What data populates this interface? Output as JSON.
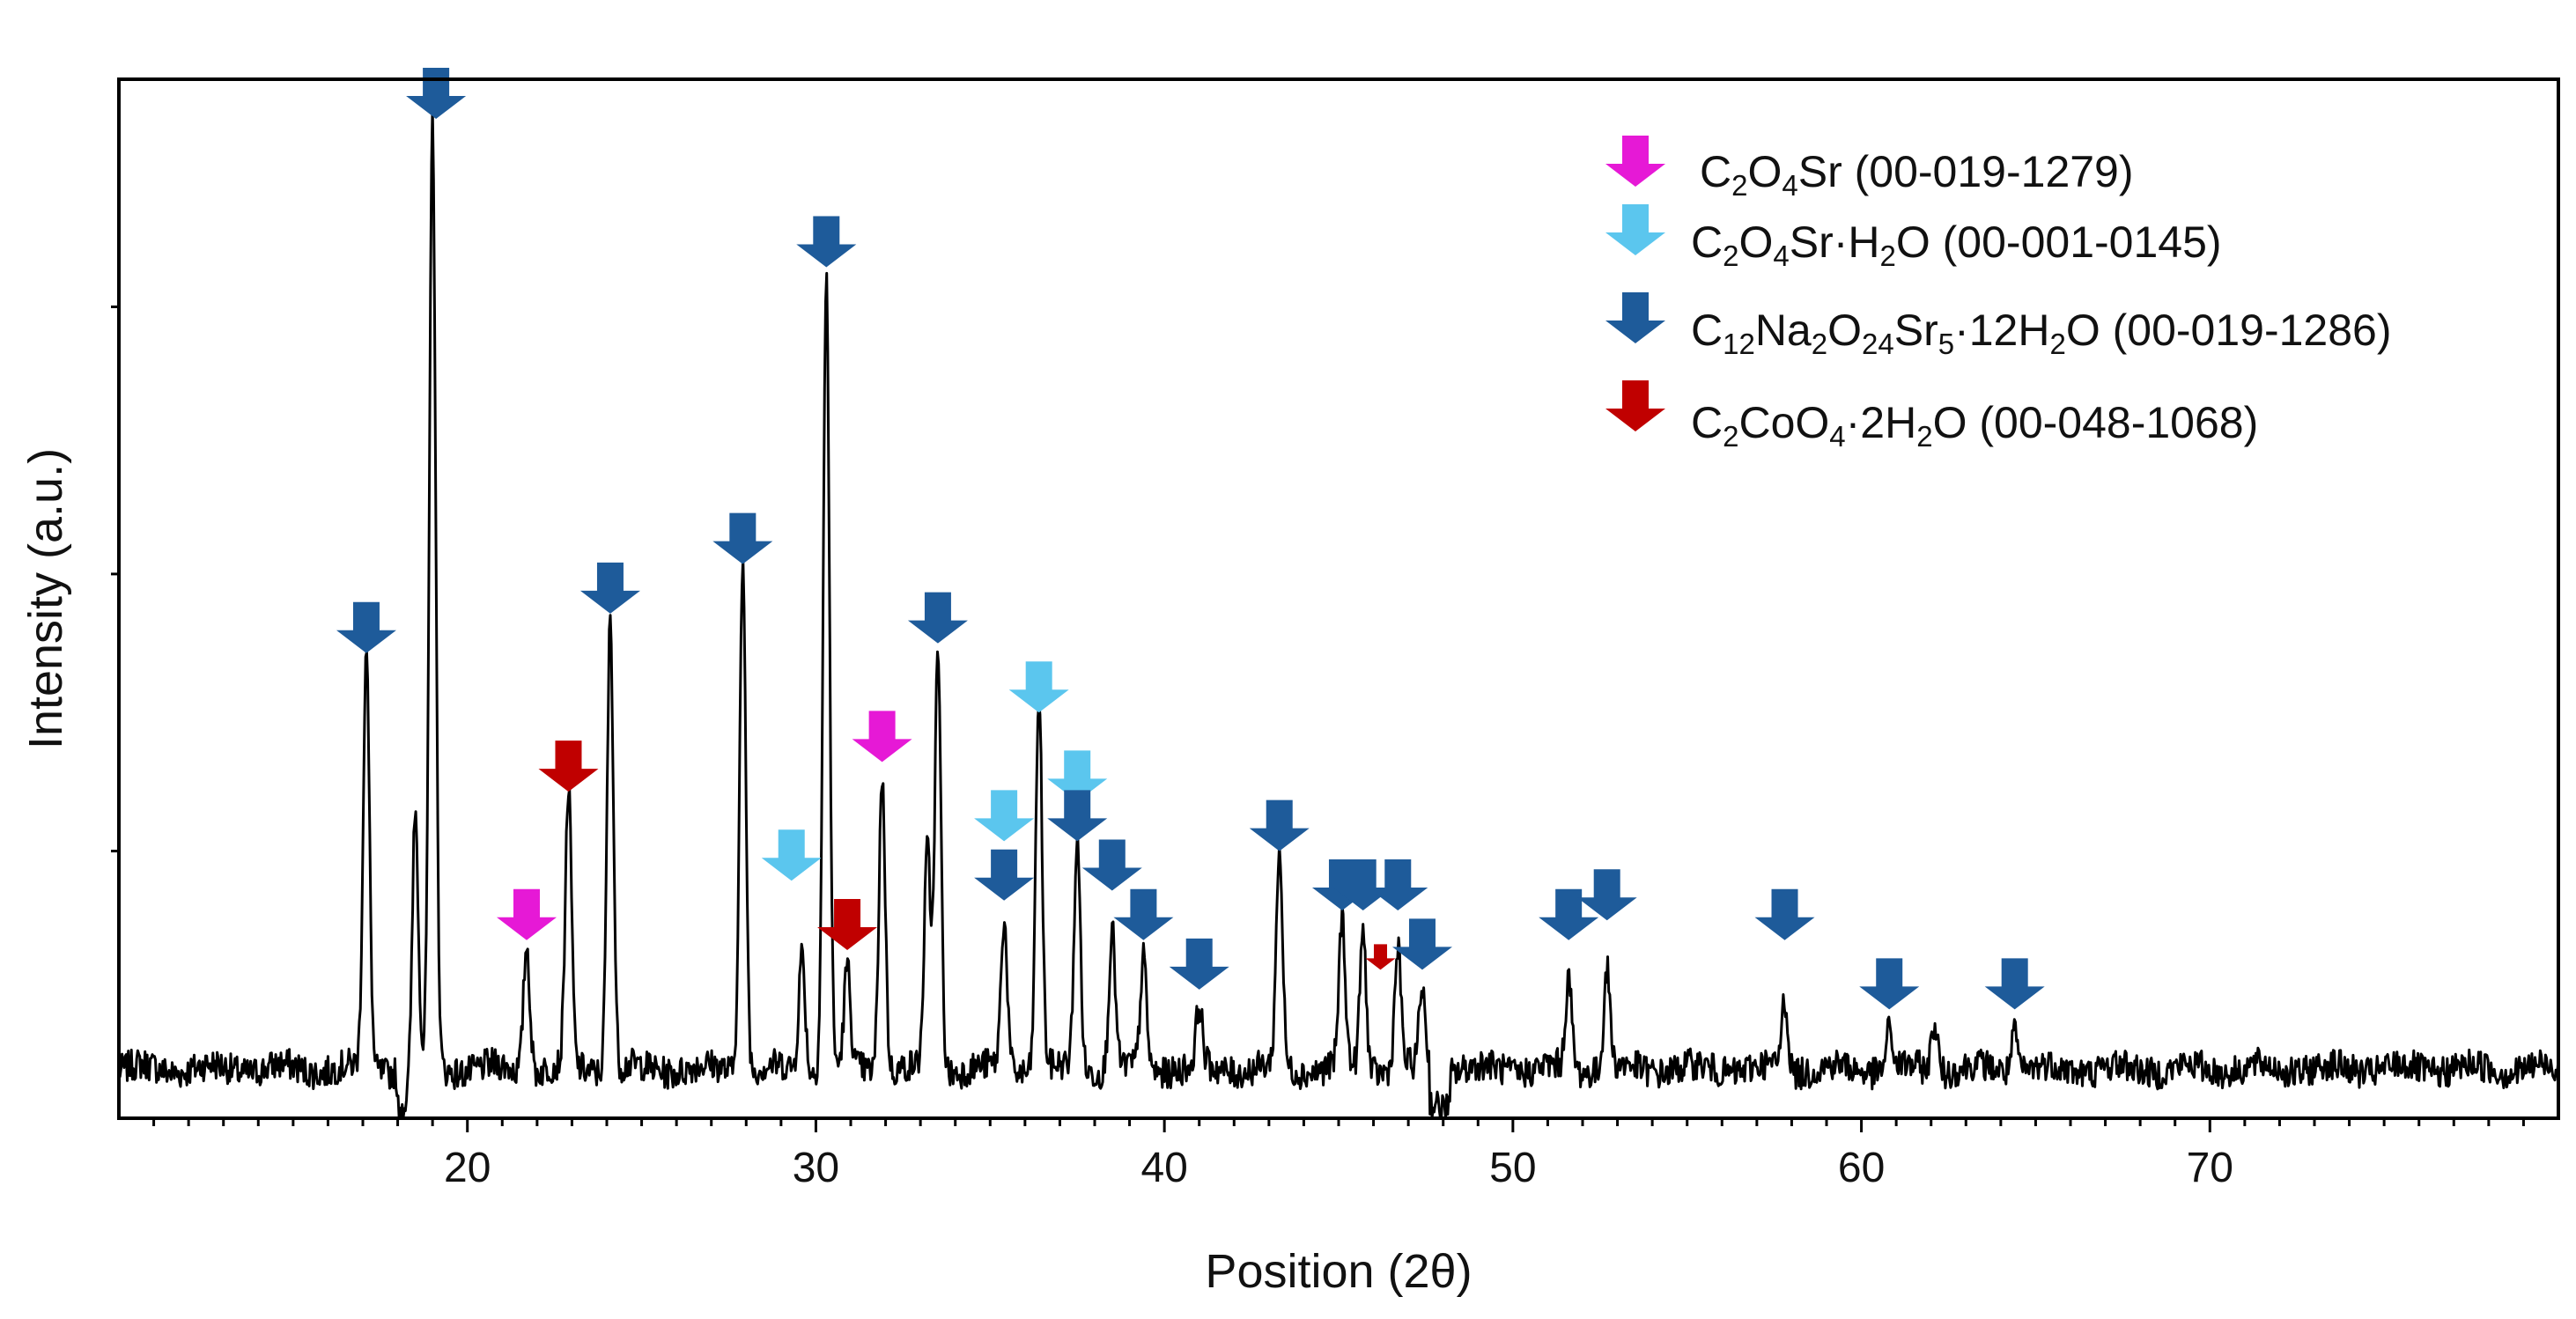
{
  "chart_data": {
    "type": "line",
    "xlabel": "Position (2θ)",
    "ylabel": "Intensity (a.u.)",
    "xlim": [
      10,
      80
    ],
    "ylim": [
      0,
      105
    ],
    "xticks": [
      20,
      30,
      40,
      50,
      60,
      70
    ],
    "xtick_labels": [
      "20",
      "30",
      "40",
      "50",
      "60",
      "70"
    ],
    "yticks": [
      27,
      55,
      82
    ],
    "baseline": 5,
    "noise_amplitude": 1.6,
    "peaks": [
      {
        "x": 17.1,
        "h": 42
      },
      {
        "x": 18.5,
        "h": 26
      },
      {
        "x": 19.0,
        "h": 96
      },
      {
        "x": 21.7,
        "h": 13
      },
      {
        "x": 22.9,
        "h": 28
      },
      {
        "x": 24.1,
        "h": 46
      },
      {
        "x": 27.9,
        "h": 51
      },
      {
        "x": 29.6,
        "h": 12
      },
      {
        "x": 30.3,
        "h": 80
      },
      {
        "x": 30.9,
        "h": 10
      },
      {
        "x": 31.9,
        "h": 30
      },
      {
        "x": 33.2,
        "h": 22
      },
      {
        "x": 33.5,
        "h": 42
      },
      {
        "x": 35.4,
        "h": 15
      },
      {
        "x": 36.4,
        "h": 38
      },
      {
        "x": 37.5,
        "h": 23
      },
      {
        "x": 38.5,
        "h": 14
      },
      {
        "x": 39.4,
        "h": 11
      },
      {
        "x": 41.0,
        "h": 6
      },
      {
        "x": 43.3,
        "h": 22
      },
      {
        "x": 45.1,
        "h": 15
      },
      {
        "x": 45.7,
        "h": 14
      },
      {
        "x": 46.7,
        "h": 12
      },
      {
        "x": 47.4,
        "h": 8
      },
      {
        "x": 51.6,
        "h": 9
      },
      {
        "x": 52.7,
        "h": 10
      },
      {
        "x": 57.8,
        "h": 7
      },
      {
        "x": 60.8,
        "h": 4
      },
      {
        "x": 62.1,
        "h": 5
      },
      {
        "x": 64.4,
        "h": 4
      }
    ],
    "markers": [
      {
        "phase": 2,
        "x": 17.1,
        "y": 47
      },
      {
        "phase": 2,
        "x": 19.1,
        "y": 101
      },
      {
        "phase": 0,
        "x": 21.7,
        "y": 18
      },
      {
        "phase": 3,
        "x": 22.9,
        "y": 33
      },
      {
        "phase": 2,
        "x": 24.1,
        "y": 51
      },
      {
        "phase": 2,
        "x": 27.9,
        "y": 56
      },
      {
        "phase": 1,
        "x": 29.3,
        "y": 24
      },
      {
        "phase": 2,
        "x": 30.3,
        "y": 86
      },
      {
        "phase": 3,
        "x": 30.9,
        "y": 17
      },
      {
        "phase": 0,
        "x": 31.9,
        "y": 36
      },
      {
        "phase": 2,
        "x": 33.5,
        "y": 48
      },
      {
        "phase": 1,
        "x": 35.4,
        "y": 28
      },
      {
        "phase": 2,
        "x": 35.4,
        "y": 22
      },
      {
        "phase": 1,
        "x": 36.4,
        "y": 41
      },
      {
        "phase": 1,
        "x": 37.5,
        "y": 32
      },
      {
        "phase": 2,
        "x": 37.5,
        "y": 28
      },
      {
        "phase": 2,
        "x": 38.5,
        "y": 23
      },
      {
        "phase": 2,
        "x": 39.4,
        "y": 18
      },
      {
        "phase": 2,
        "x": 41.0,
        "y": 13
      },
      {
        "phase": 2,
        "x": 43.3,
        "y": 27
      },
      {
        "phase": 2,
        "x": 45.1,
        "y": 21
      },
      {
        "phase": 2,
        "x": 45.7,
        "y": 21
      },
      {
        "phase": 2,
        "x": 46.7,
        "y": 21
      },
      {
        "phase": 3,
        "x": 46.2,
        "y": 15,
        "small": true
      },
      {
        "phase": 2,
        "x": 47.4,
        "y": 15
      },
      {
        "phase": 2,
        "x": 51.6,
        "y": 18
      },
      {
        "phase": 2,
        "x": 52.7,
        "y": 20
      },
      {
        "phase": 2,
        "x": 57.8,
        "y": 18
      },
      {
        "phase": 2,
        "x": 60.8,
        "y": 11
      },
      {
        "phase": 2,
        "x": 64.4,
        "y": 11
      }
    ],
    "legend_position": "top-right"
  },
  "legend": [
    {
      "formula": "C2O4Sr",
      "code": "(00-019-1279)",
      "color": "#e619d6"
    },
    {
      "formula": "C2O4Sr·H2O",
      "code": "(00-001-0145)",
      "color": "#5bc6ee"
    },
    {
      "formula": "C12Na2O24Sr5·12H2O",
      "code": "(00-019-1286)",
      "color": "#1e5b9a"
    },
    {
      "formula": "C2CoO4·2H2O",
      "code": "(00-048-1068)",
      "color": "#c00000"
    }
  ]
}
